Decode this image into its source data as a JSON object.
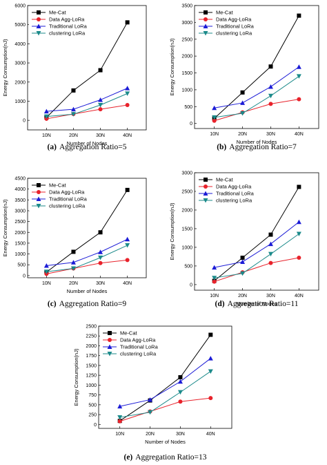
{
  "colors": {
    "me_cat": "#000000",
    "data_agg": "#e8222b",
    "traditional": "#1b1bd6",
    "clustering": "#1b8a8a"
  },
  "chart_data": [
    {
      "type": "line",
      "caption_label": "(a)",
      "caption_text": "Aggregation Ratio=5",
      "xlabel": "Number of Nodes",
      "ylabel": "Energy Consumption(nJ)",
      "categories": [
        "10N",
        "20N",
        "30N",
        "40N"
      ],
      "ylim": [
        -500,
        6000
      ],
      "yticks": [
        0,
        1000,
        2000,
        3000,
        4000,
        5000,
        6000
      ],
      "grid": false,
      "legend_position": "top-left",
      "series": [
        {
          "name": "Me-Cat",
          "values": [
            150,
            1560,
            2620,
            5120
          ],
          "marker": "square",
          "color": "#000000"
        },
        {
          "name": "Data Agg-LoRa",
          "values": [
            80,
            330,
            580,
            800
          ],
          "marker": "circle",
          "color": "#e8222b"
        },
        {
          "name": "Traditional LoRa",
          "values": [
            470,
            580,
            1070,
            1680
          ],
          "marker": "triangle-up",
          "color": "#1b1bd6"
        },
        {
          "name": "clustering LoRa",
          "values": [
            200,
            320,
            800,
            1400
          ],
          "marker": "triangle-down",
          "color": "#1b8a8a"
        }
      ]
    },
    {
      "type": "line",
      "caption_label": "(b)",
      "caption_text": "Aggregation Ratio=7",
      "xlabel": "Number of Nodes",
      "ylabel": "Energy Consumption(nJ)",
      "categories": [
        "10N",
        "20N",
        "30N",
        "40N"
      ],
      "ylim": [
        -150,
        3500
      ],
      "yticks": [
        0,
        500,
        1000,
        1500,
        2000,
        2500,
        3000,
        3500
      ],
      "grid": false,
      "legend_position": "top-left",
      "series": [
        {
          "name": "Me-Cat",
          "values": [
            150,
            920,
            1690,
            3200
          ],
          "marker": "square",
          "color": "#000000"
        },
        {
          "name": "Data Agg-LoRa",
          "values": [
            80,
            330,
            580,
            720
          ],
          "marker": "circle",
          "color": "#e8222b"
        },
        {
          "name": "Traditional LoRa",
          "values": [
            460,
            610,
            1090,
            1680
          ],
          "marker": "triangle-up",
          "color": "#1b1bd6"
        },
        {
          "name": "clustering LoRa",
          "values": [
            180,
            300,
            820,
            1400
          ],
          "marker": "triangle-down",
          "color": "#1b8a8a"
        }
      ]
    },
    {
      "type": "line",
      "caption_label": "(c)",
      "caption_text": "Aggregation Ratio=9",
      "xlabel": "Number of Nodes",
      "ylabel": "Energy Consumption(nJ)",
      "categories": [
        "10N",
        "20N",
        "30N",
        "40N"
      ],
      "ylim": [
        -100,
        4500
      ],
      "yticks": [
        0,
        500,
        1000,
        1500,
        2000,
        2500,
        3000,
        3500,
        4000,
        4500
      ],
      "grid": false,
      "legend_position": "top-left",
      "series": [
        {
          "name": "Me-Cat",
          "values": [
            160,
            1100,
            2000,
            3960
          ],
          "marker": "square",
          "color": "#000000"
        },
        {
          "name": "Data Agg-LoRa",
          "values": [
            80,
            330,
            580,
            720
          ],
          "marker": "circle",
          "color": "#e8222b"
        },
        {
          "name": "Traditional LoRa",
          "values": [
            460,
            610,
            1090,
            1680
          ],
          "marker": "triangle-up",
          "color": "#1b1bd6"
        },
        {
          "name": "clustering LoRa",
          "values": [
            180,
            330,
            830,
            1400
          ],
          "marker": "triangle-down",
          "color": "#1b8a8a"
        }
      ]
    },
    {
      "type": "line",
      "caption_label": "(d)",
      "caption_text": "Aggregation Ratio=11",
      "xlabel": "Number of Nodes",
      "ylabel": "Energy Consumption(nJ)",
      "categories": [
        "10N",
        "20N",
        "30N",
        "40N"
      ],
      "ylim": [
        -150,
        3000
      ],
      "yticks": [
        0,
        500,
        1000,
        1500,
        2000,
        2500,
        3000
      ],
      "grid": false,
      "legend_position": "top-left",
      "series": [
        {
          "name": "Me-Cat",
          "values": [
            100,
            720,
            1340,
            2620
          ],
          "marker": "square",
          "color": "#000000"
        },
        {
          "name": "Data Agg-LoRa",
          "values": [
            80,
            330,
            580,
            720
          ],
          "marker": "circle",
          "color": "#e8222b"
        },
        {
          "name": "Traditional LoRa",
          "values": [
            460,
            610,
            1090,
            1680
          ],
          "marker": "triangle-up",
          "color": "#1b1bd6"
        },
        {
          "name": "clustering LoRa",
          "values": [
            180,
            300,
            820,
            1360
          ],
          "marker": "triangle-down",
          "color": "#1b8a8a"
        }
      ]
    },
    {
      "type": "line",
      "caption_label": "(e)",
      "caption_text": "Aggregation Ratio=13",
      "xlabel": "Number of Nodes",
      "ylabel": "Energy Consumption(nJ)",
      "categories": [
        "10N",
        "20N",
        "30N",
        "40N"
      ],
      "ylim": [
        -100,
        2500
      ],
      "yticks": [
        0,
        250,
        500,
        750,
        1000,
        1250,
        1500,
        1750,
        2000,
        2250,
        2500
      ],
      "grid": false,
      "legend_position": "top-left",
      "series": [
        {
          "name": "Me-Cat",
          "values": [
            90,
            610,
            1200,
            2280
          ],
          "marker": "square",
          "color": "#000000"
        },
        {
          "name": "Data Agg-LoRa",
          "values": [
            80,
            330,
            580,
            670
          ],
          "marker": "circle",
          "color": "#e8222b"
        },
        {
          "name": "Traditional LoRa",
          "values": [
            460,
            630,
            1090,
            1680
          ],
          "marker": "triangle-up",
          "color": "#1b1bd6"
        },
        {
          "name": "clustering LoRa",
          "values": [
            180,
            310,
            820,
            1350
          ],
          "marker": "triangle-down",
          "color": "#1b8a8a"
        }
      ]
    }
  ]
}
